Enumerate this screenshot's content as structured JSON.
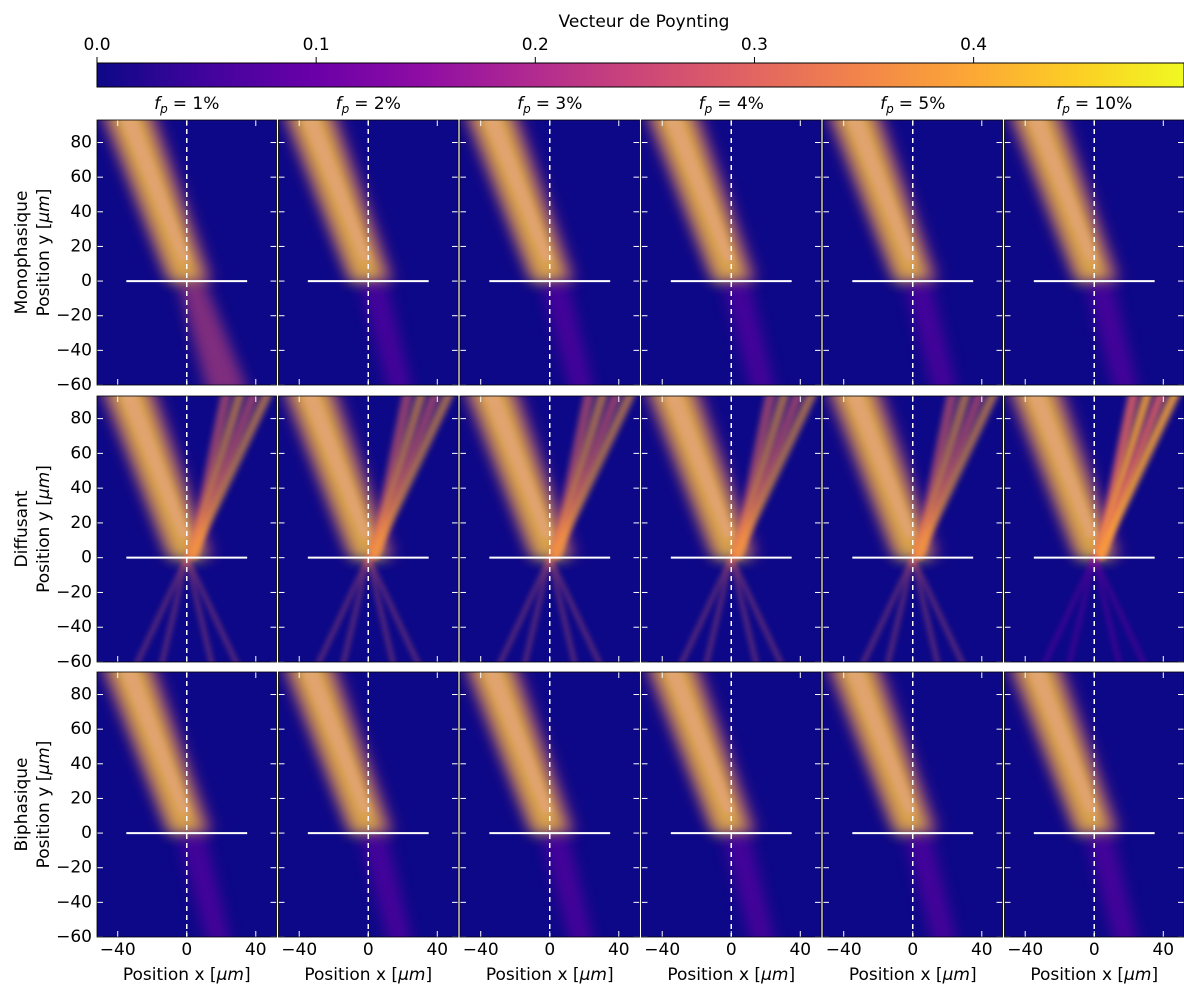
{
  "chart_data": {
    "type": "heatmap",
    "colorbar": {
      "label": "Vecteur de Poynting",
      "lim": [
        0,
        0.496
      ],
      "ticks": [
        {
          "value": 0,
          "label": "0.0"
        },
        0.1,
        0.2,
        0.3,
        0.4
      ],
      "colormap": [
        "#0d0887",
        "#41049d",
        "#6a00a8",
        "#8f0da4",
        "#b12a90",
        "#cc4778",
        "#e16462",
        "#f2844b",
        "#fca636",
        "#fcce25",
        "#f0f921"
      ]
    },
    "column_titles": [
      [
        "f",
        "p",
        "= 1%"
      ],
      [
        "f",
        "p",
        "= 2%"
      ],
      [
        "f",
        "p",
        "= 3%"
      ],
      [
        "f",
        "p",
        "= 4%"
      ],
      [
        "f",
        "p",
        "= 5%"
      ],
      [
        "f",
        "p",
        "= 10%"
      ]
    ],
    "row_labels": [
      "Monophasique",
      "Diffusant",
      "Biphasique"
    ],
    "ylabel": [
      "Position y [",
      "μm",
      "]"
    ],
    "xlabel": [
      "Position x [",
      "μm",
      "]"
    ],
    "xlim": [
      -52,
      52
    ],
    "ylim": [
      -60,
      93
    ],
    "xticks": [
      {
        "value": -40,
        "label": "−40"
      },
      0,
      40
    ],
    "yticks": [
      80,
      60,
      40,
      20,
      0,
      {
        "value": -20,
        "label": "−20"
      },
      {
        "value": -40,
        "label": "−40"
      },
      {
        "value": -60,
        "label": "−60"
      }
    ],
    "interface": {
      "x": [
        -35,
        35
      ],
      "y": 0
    },
    "center_x": 0
  }
}
